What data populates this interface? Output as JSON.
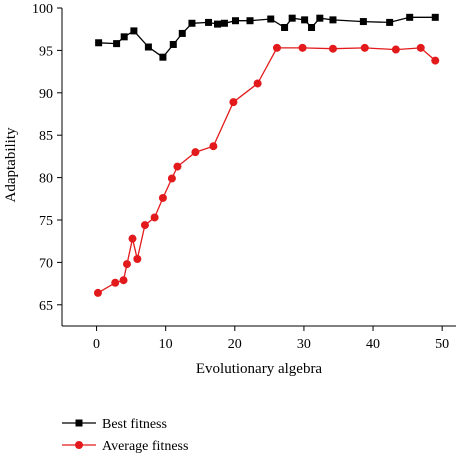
{
  "chart_data": {
    "type": "line",
    "title": "",
    "xlabel": "Evolutionary algebra",
    "ylabel": "Adaptability",
    "xlim": [
      -5,
      52
    ],
    "ylim": [
      62.5,
      100
    ],
    "xticks": [
      0,
      10,
      20,
      30,
      40,
      50
    ],
    "yticks": [
      65,
      70,
      75,
      80,
      85,
      90,
      95,
      100
    ],
    "grid": false,
    "legend_position": "bottom-left, below plot",
    "series": [
      {
        "name": "Best fitness",
        "color": "#000000",
        "marker": "square",
        "x": [
          0.3,
          2.9,
          4,
          5.4,
          7.5,
          9.6,
          11.1,
          12.4,
          13.8,
          16.2,
          17.5,
          18.5,
          20.1,
          22.2,
          25.2,
          27.2,
          28.3,
          30.1,
          31.1,
          32.3,
          34.2,
          38.6,
          42.4,
          45.3,
          49
        ],
        "y": [
          95.9,
          95.8,
          96.6,
          97.3,
          95.4,
          94.2,
          95.7,
          97,
          98.2,
          98.3,
          98.1,
          98.2,
          98.5,
          98.5,
          98.7,
          97.7,
          98.8,
          98.6,
          97.7,
          98.8,
          98.6,
          98.4,
          98.3,
          98.9,
          98.9
        ]
      },
      {
        "name": "Average fitness",
        "color": "#e31a1c",
        "marker": "circle",
        "x": [
          0.2,
          2.7,
          3.9,
          4.4,
          5.2,
          5.9,
          7,
          8.4,
          9.6,
          10.9,
          11.7,
          14.3,
          16.9,
          19.8,
          23.3,
          26.1,
          29.8,
          34.2,
          38.8,
          43.3,
          46.9,
          49
        ],
        "y": [
          66.4,
          67.6,
          67.9,
          69.8,
          72.8,
          70.4,
          74.4,
          75.3,
          77.6,
          79.9,
          81.3,
          83,
          83.7,
          88.9,
          91.1,
          95.3,
          95.3,
          95.2,
          95.3,
          95.1,
          95.3,
          93.8
        ]
      }
    ]
  }
}
